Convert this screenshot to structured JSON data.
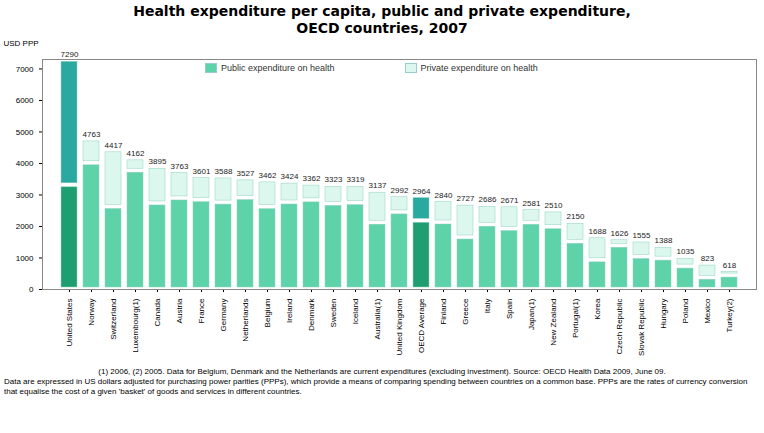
{
  "chart_data": {
    "type": "bar",
    "stacked": true,
    "title": "Health expenditure per capita, public and private expenditure,",
    "subtitle": "OECD countries, 2007",
    "y_label": "USD PPP",
    "categories": [
      "United States",
      "Norway",
      "Switzerland",
      "Luxembourg(1)",
      "Canada",
      "Austria",
      "France",
      "Germany",
      "Netherlands",
      "Belgium",
      "Ireland",
      "Denmark",
      "Sweden",
      "Iceland",
      "Australia(1)",
      "United Kingdom",
      "OECD Average",
      "Finland",
      "Greece",
      "Italy",
      "Spain",
      "Japan(1)",
      "New Zealand",
      "Portugal(1)",
      "Korea",
      "Czech Republic",
      "Slovak Republic",
      "Hungary",
      "Poland",
      "Mexico",
      "Turkey(2)"
    ],
    "series": [
      {
        "name": "Public expenditure on health",
        "color": "#5ed3a9",
        "colors": [
          "#1f9e72",
          "#5ed3a9",
          "#5ed3a9",
          "#5ed3a9",
          "#5ed3a9",
          "#5ed3a9",
          "#5ed3a9",
          "#5ed3a9",
          "#5ed3a9",
          "#5ed3a9",
          "#5ed3a9",
          "#5ed3a9",
          "#5ed3a9",
          "#5ed3a9",
          "#5ed3a9",
          "#5ed3a9",
          "#1f9e72",
          "#5ed3a9",
          "#5ed3a9",
          "#5ed3a9",
          "#5ed3a9",
          "#5ed3a9",
          "#5ed3a9",
          "#5ed3a9",
          "#5ed3a9",
          "#5ed3a9",
          "#5ed3a9",
          "#5ed3a9",
          "#5ed3a9",
          "#5ed3a9",
          "#5ed3a9"
        ],
        "values": [
          3307,
          4005,
          2619,
          3770,
          2731,
          2889,
          2833,
          2758,
          2900,
          2612,
          2761,
          2828,
          2716,
          2739,
          2120,
          2446,
          2180,
          2126,
          1650,
          2056,
          1917,
          2118,
          1975,
          1515,
          925,
          1388,
          1032,
          980,
          727,
          372,
          442
        ]
      },
      {
        "name": "Private expenditure on health",
        "color": "#dcf8ee",
        "colors": [
          "#2aa9a0",
          "#dcf8ee",
          "#dcf8ee",
          "#dcf8ee",
          "#dcf8ee",
          "#dcf8ee",
          "#dcf8ee",
          "#dcf8ee",
          "#dcf8ee",
          "#dcf8ee",
          "#dcf8ee",
          "#dcf8ee",
          "#dcf8ee",
          "#dcf8ee",
          "#dcf8ee",
          "#dcf8ee",
          "#2aa9a0",
          "#dcf8ee",
          "#dcf8ee",
          "#dcf8ee",
          "#dcf8ee",
          "#dcf8ee",
          "#dcf8ee",
          "#dcf8ee",
          "#dcf8ee",
          "#dcf8ee",
          "#dcf8ee",
          "#dcf8ee",
          "#dcf8ee",
          "#dcf8ee",
          "#dcf8ee"
        ],
        "values": [
          3983,
          758,
          1798,
          392,
          1164,
          874,
          768,
          830,
          627,
          850,
          663,
          534,
          607,
          580,
          1017,
          546,
          784,
          714,
          1077,
          630,
          754,
          463,
          535,
          635,
          763,
          238,
          523,
          408,
          308,
          451,
          176
        ]
      }
    ],
    "totals": [
      7290,
      4763,
      4417,
      4162,
      3895,
      3763,
      3601,
      3588,
      3527,
      3462,
      3424,
      3362,
      3323,
      3319,
      3137,
      2992,
      2964,
      2840,
      2727,
      2686,
      2671,
      2581,
      2510,
      2150,
      1688,
      1626,
      1555,
      1388,
      1035,
      823,
      618
    ],
    "ylim": [
      0,
      7300
    ],
    "yticks": [
      0,
      1000,
      2000,
      3000,
      4000,
      5000,
      6000,
      7000
    ],
    "grid": false,
    "legend": "top",
    "annotations": [
      "(1) 2006, (2) 2005. Data for Belgium, Denmark and the Netherlands are current expenditures (excluding investment).  Source: OECD Health Data 2009, June 09.",
      "Data are expressed in US dollars adjusted for purchasing power parities (PPPs), which provide a means of comparing spending between countries on a common base. PPPs are the rates of currency conversion that equalise the cost of a given 'basket' of goods and services in different countries."
    ]
  }
}
